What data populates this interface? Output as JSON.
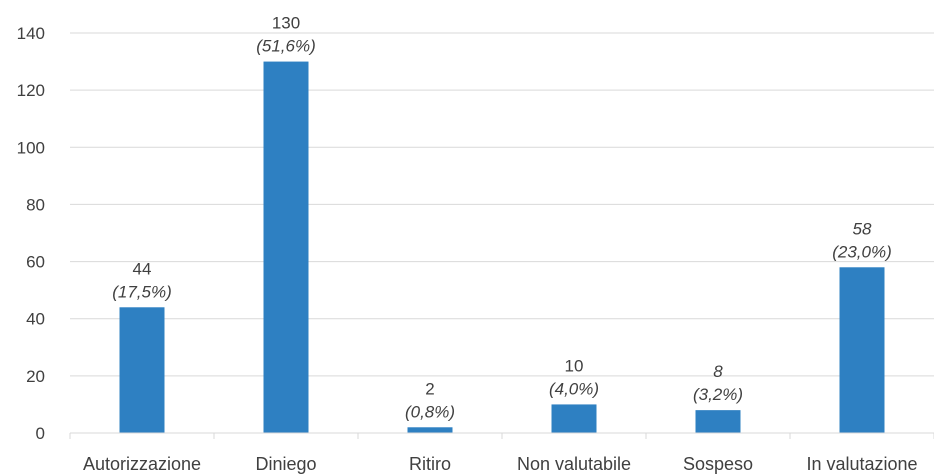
{
  "chart_data": {
    "type": "bar",
    "title": "",
    "xlabel": "",
    "ylabel": "",
    "ylim": [
      0,
      140
    ],
    "yticks": [
      0,
      20,
      40,
      60,
      80,
      100,
      120,
      140
    ],
    "grid": true,
    "legend": "none",
    "bar_color": "#2e80c2",
    "categories": [
      "Autorizzazione",
      "Diniego",
      "Ritiro",
      "Non valutabile",
      "Sospeso",
      "In valutazione"
    ],
    "values": [
      44,
      130,
      2,
      10,
      8,
      58
    ],
    "value_labels": [
      "44",
      "130",
      "2",
      "10",
      "8",
      "58"
    ],
    "percent_labels": [
      "(17,5%)",
      "(51,6%)",
      "(0,8%)",
      "(4,0%)",
      "(3,2%)",
      "(23,0%)"
    ],
    "value_label_italic": [
      false,
      false,
      false,
      false,
      true,
      true
    ]
  }
}
